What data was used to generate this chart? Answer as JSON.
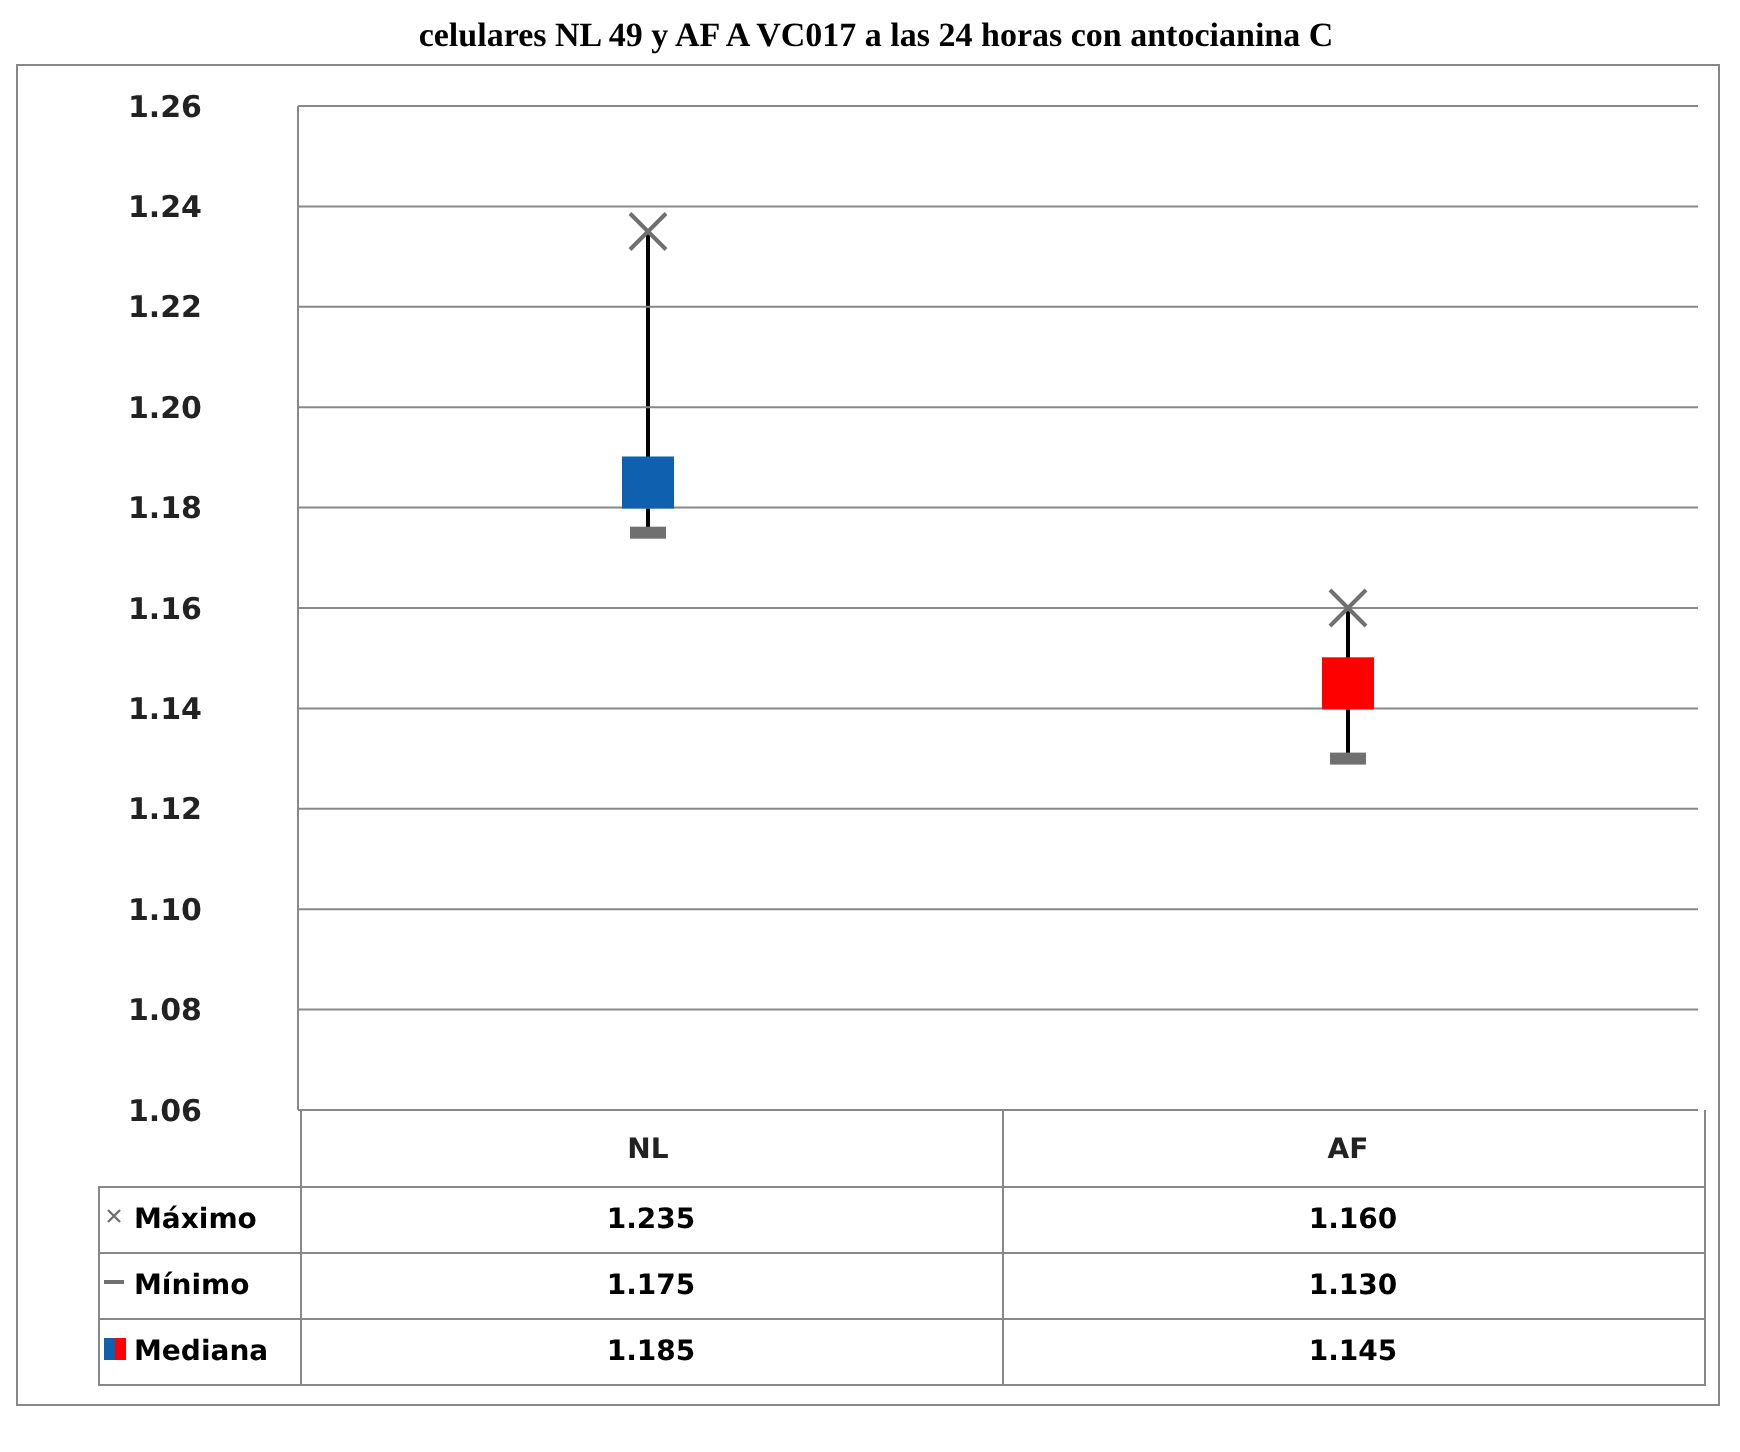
{
  "chart_data": {
    "type": "scatter",
    "title": "celulares NL 49 y AF A VC017 a las 24 horas con antocianina C",
    "categories": [
      "NL",
      "AF"
    ],
    "series": [
      {
        "name": "Máximo",
        "color": "#707070",
        "marker": "cross",
        "values": [
          1.235,
          1.16
        ],
        "value_labels": [
          "1.235",
          "1.160"
        ]
      },
      {
        "name": "Mínimo",
        "color": "#707070",
        "values": [
          1.175,
          1.13
        ],
        "value_labels": [
          "1.175",
          "1.130"
        ]
      },
      {
        "name": "Mediana",
        "color": "#707070",
        "colors": [
          "#1060b0",
          "#ff0000"
        ],
        "marker": "square",
        "values": [
          1.185,
          1.145
        ],
        "value_labels": [
          "1.185",
          "1.145"
        ]
      }
    ],
    "ylim": [
      1.06,
      1.26
    ],
    "yticks": [
      1.06,
      1.08,
      {
        "value": 1.1,
        "label": "1.10"
      },
      1.12,
      1.14,
      1.16,
      1.18,
      {
        "value": 1.2,
        "label": "1.20"
      },
      1.22,
      1.24,
      1.26
    ],
    "grid": "y",
    "legend": "bottom"
  }
}
